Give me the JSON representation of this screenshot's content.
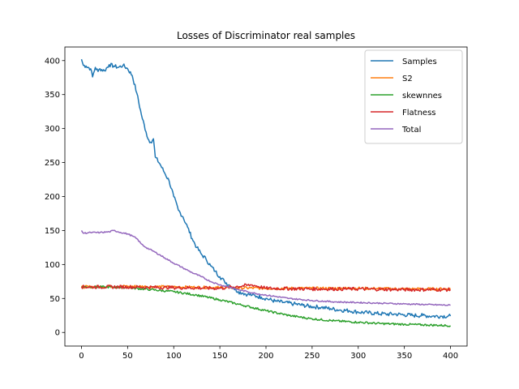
{
  "chart_data": {
    "type": "line",
    "title": "Losses of Discriminator real samples",
    "xlabel": "",
    "ylabel": "",
    "xlim": [
      -18,
      418
    ],
    "ylim": [
      -20,
      420
    ],
    "xticks": [
      0,
      50,
      100,
      150,
      200,
      250,
      300,
      350,
      400
    ],
    "yticks": [
      0,
      50,
      100,
      150,
      200,
      250,
      300,
      350,
      400
    ],
    "grid": false,
    "legend_position": "top-right",
    "series": [
      {
        "name": "Samples",
        "color": "#1f77b4",
        "x": [
          0,
          2,
          5,
          10,
          12,
          15,
          18,
          20,
          25,
          30,
          35,
          40,
          45,
          50,
          55,
          60,
          65,
          70,
          72,
          75,
          78,
          80,
          85,
          90,
          95,
          100,
          105,
          110,
          115,
          120,
          125,
          130,
          135,
          140,
          145,
          150,
          155,
          160,
          165,
          170,
          175,
          180,
          185,
          190,
          195,
          200,
          210,
          220,
          230,
          240,
          250,
          260,
          270,
          280,
          290,
          300,
          310,
          320,
          330,
          340,
          350,
          360,
          370,
          380,
          390,
          400
        ],
        "y": [
          402,
          393,
          392,
          388,
          376,
          390,
          384,
          388,
          385,
          394,
          392,
          390,
          393,
          388,
          378,
          352,
          320,
          295,
          285,
          280,
          285,
          258,
          248,
          235,
          223,
          200,
          180,
          170,
          155,
          138,
          125,
          115,
          108,
          98,
          90,
          82,
          75,
          70,
          65,
          60,
          58,
          56,
          55,
          53,
          52,
          50,
          46,
          44,
          42,
          40,
          38,
          37,
          35,
          33,
          32,
          30,
          29,
          28,
          27,
          27,
          26,
          25,
          25,
          24,
          24,
          24
        ]
      },
      {
        "name": "S2",
        "color": "#ff7f0e",
        "x": [
          0,
          50,
          100,
          150,
          200,
          250,
          300,
          350,
          400
        ],
        "y": [
          67,
          68,
          67,
          66,
          65,
          65,
          65,
          64,
          64
        ]
      },
      {
        "name": "skewnnes",
        "color": "#2ca02c",
        "x": [
          0,
          25,
          50,
          75,
          100,
          125,
          150,
          175,
          200,
          225,
          250,
          275,
          300,
          325,
          350,
          375,
          400
        ],
        "y": [
          67,
          67,
          66,
          63,
          60,
          55,
          48,
          40,
          32,
          25,
          20,
          17,
          15,
          13,
          12,
          11,
          10
        ]
      },
      {
        "name": "Flatness",
        "color": "#d62728",
        "x": [
          0,
          50,
          100,
          150,
          185,
          200,
          250,
          300,
          350,
          400
        ],
        "y": [
          67,
          67,
          66,
          65,
          70,
          65,
          64,
          64,
          63,
          63
        ]
      },
      {
        "name": "Total",
        "color": "#9467bd",
        "x": [
          0,
          2,
          10,
          20,
          30,
          35,
          40,
          50,
          55,
          60,
          65,
          70,
          80,
          90,
          100,
          110,
          120,
          130,
          140,
          150,
          160,
          170,
          180,
          190,
          200,
          225,
          250,
          275,
          300,
          325,
          350,
          375,
          400
        ],
        "y": [
          150,
          146,
          147,
          147,
          148,
          150,
          148,
          145,
          142,
          138,
          130,
          125,
          118,
          110,
          102,
          95,
          88,
          82,
          75,
          70,
          67,
          63,
          60,
          57,
          55,
          50,
          47,
          45,
          44,
          43,
          42,
          41,
          40
        ]
      }
    ]
  }
}
